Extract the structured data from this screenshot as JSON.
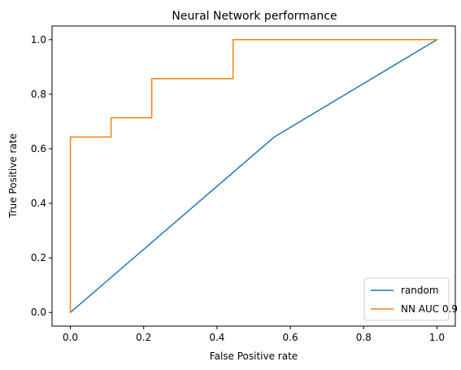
{
  "chart_data": {
    "type": "line",
    "title": "Neural Network performance",
    "xlabel": "False Positive rate",
    "ylabel": "True Positive rate",
    "xlim": [
      -0.05,
      1.05
    ],
    "ylim": [
      -0.05,
      1.05
    ],
    "xticks": [
      0.0,
      0.2,
      0.4,
      0.6,
      0.8,
      1.0
    ],
    "yticks": [
      0.0,
      0.2,
      0.4,
      0.6,
      0.8,
      1.0
    ],
    "tick_labels": [
      "0.0",
      "0.2",
      "0.4",
      "0.6",
      "0.8",
      "1.0"
    ],
    "grid": false,
    "legend_position": "bottom-right",
    "series": [
      {
        "name": "random",
        "color": "#1f77b4",
        "x": [
          0.0,
          0.556,
          1.0
        ],
        "y": [
          0.0,
          0.643,
          1.0
        ]
      },
      {
        "name": "NN AUC 0.9",
        "color": "#ff7f0e",
        "x": [
          0.0,
          0.0,
          0.0,
          0.111,
          0.111,
          0.222,
          0.222,
          0.444,
          0.444,
          1.0
        ],
        "y": [
          0.0,
          0.643,
          0.643,
          0.643,
          0.714,
          0.714,
          0.857,
          0.857,
          1.0,
          1.0
        ]
      }
    ]
  }
}
